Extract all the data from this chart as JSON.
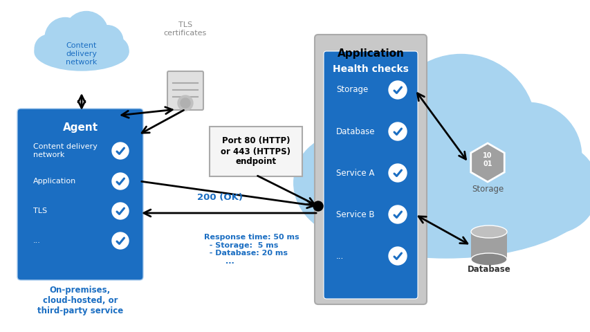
{
  "bg_color": "#ffffff",
  "cloud_blue": "#a8d4f0",
  "cloud_dark_blue": "#7fbce8",
  "agent_blue": "#1b6ec2",
  "health_blue": "#1565c0",
  "panel_gray": "#b8b8b8",
  "text_white": "#ffffff",
  "text_blue": "#1b6ec2",
  "text_dark": "#222222",
  "tls_text_color": "#888888",
  "ok_text_color": "#1b6ec2",
  "agent_label": "Agent",
  "agent_items": [
    "Content delivery\nnetwork",
    "Application",
    "TLS",
    "..."
  ],
  "health_label": "Health checks",
  "health_items": [
    "Storage",
    "Database",
    "Service A",
    "Service B",
    "..."
  ],
  "app_label": "Application",
  "cdn_label": "Content\ndelivery\nnetwork",
  "tls_label": "TLS\ncertificates",
  "port_label": "Port 80 (HTTP)\nor 443 (HTTPS)\nendpoint",
  "ok_label": "200 (OK)",
  "response_label": "Response time: 50 ms\n  - Storage:  5 ms\n  - Database: 20 ms\n        ...",
  "storage_label": "Storage",
  "database_label": "Database",
  "premises_label": "On-premises,\ncloud-hosted, or\nthird-party service",
  "figw": 8.54,
  "figh": 4.8,
  "dpi": 100
}
